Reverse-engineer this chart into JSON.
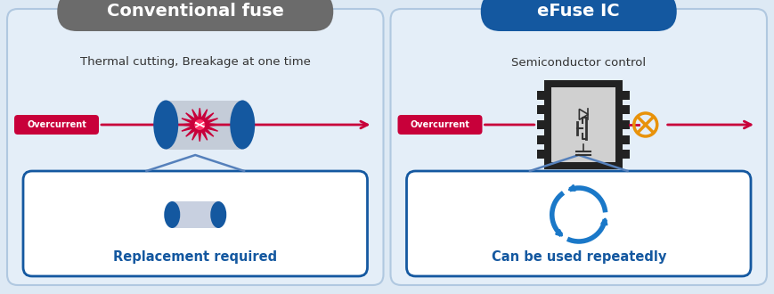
{
  "bg_color": "#dde9f4",
  "panel_bg": "#e4eef8",
  "panel_edge": "#b0c8e0",
  "left_header_text": "Conventional fuse",
  "left_header_bg": "#6b6b6b",
  "right_header_text": "eFuse IC",
  "right_header_bg": "#1458a0",
  "header_text_color": "#ffffff",
  "subtitle_left": "Thermal cutting, Breakage at one time",
  "subtitle_right": "Semiconductor control",
  "subtitle_color": "#333333",
  "overcurrent_label": "Overcurrent",
  "overcurrent_bg": "#c8003a",
  "overcurrent_fg": "#ffffff",
  "arrow_color": "#c8003a",
  "fuse_blue": "#1458a0",
  "fuse_gray": "#c4ccd8",
  "fuse_gray_dark": "#a0a8b8",
  "spark_color": "#c8003a",
  "ic_body": "#222222",
  "ic_inner": "#d0d0d0",
  "orange_x": "#e8920a",
  "box_border": "#1458a0",
  "box_bg": "#ffffff",
  "recycle_color": "#1a78c8",
  "bracket_color": "#5580bb"
}
